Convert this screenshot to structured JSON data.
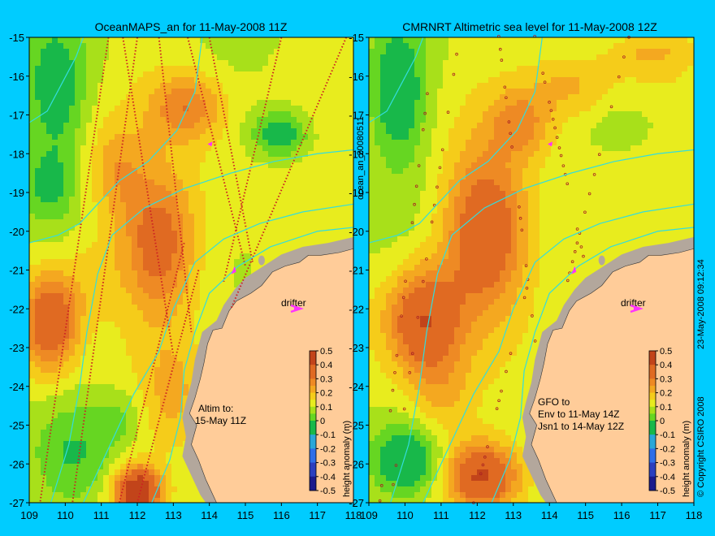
{
  "colors": {
    "background": "#00ccff",
    "land": "#ffcc99",
    "shelf": "#b3a79c",
    "contour": "#33dddd",
    "track_left": "#cc2222",
    "drifter": "#ff33ff"
  },
  "chart_data": [
    {
      "type": "heatmap",
      "title": "OceanMAPS_an for 11-May-2008 11Z",
      "xlim": [
        109,
        118
      ],
      "ylim": [
        -27,
        -15
      ],
      "x_ticks": [
        "109",
        "110",
        "111",
        "112",
        "113",
        "114",
        "115",
        "116",
        "117",
        "118"
      ],
      "y_ticks": [
        "-15",
        "-16",
        "-17",
        "-18",
        "-19",
        "-20",
        "-21",
        "-22",
        "-23",
        "-24",
        "-25",
        "-26",
        "-27"
      ],
      "annotations": {
        "drifter": "drifter",
        "altim_line1": "Altim to:",
        "altim_line2": "15-May 11Z"
      },
      "blobs": [
        {
          "x": 109.6,
          "y": -22.3,
          "v": 0.32,
          "sx": 0.55,
          "sy": 0.9
        },
        {
          "x": 112.0,
          "y": -26.7,
          "v": 0.42,
          "sx": 0.45,
          "sy": 0.45
        },
        {
          "x": 112.6,
          "y": -20.3,
          "v": 0.26,
          "sx": 0.7,
          "sy": 1.2
        },
        {
          "x": 113.4,
          "y": -16.8,
          "v": 0.2,
          "sx": 0.7,
          "sy": 0.6
        },
        {
          "x": 111.4,
          "y": -18.5,
          "v": 0.15,
          "sx": 0.6,
          "sy": 0.9
        },
        {
          "x": 109.7,
          "y": -16.4,
          "v": -0.12,
          "sx": 0.6,
          "sy": 1.2
        },
        {
          "x": 109.5,
          "y": -18.8,
          "v": -0.08,
          "sx": 0.5,
          "sy": 0.6
        },
        {
          "x": 116.0,
          "y": -17.5,
          "v": -0.14,
          "sx": 0.6,
          "sy": 0.45
        },
        {
          "x": 110.3,
          "y": -25.7,
          "v": -0.05,
          "sx": 0.8,
          "sy": 0.9
        },
        {
          "x": 111.5,
          "y": -24.8,
          "v": -0.03,
          "sx": 0.5,
          "sy": 0.5
        },
        {
          "x": 113.0,
          "y": -24.3,
          "v": 0.13,
          "sx": 0.6,
          "sy": 1.0
        },
        {
          "x": 110.8,
          "y": -21.0,
          "v": 0.1,
          "sx": 0.6,
          "sy": 0.8
        },
        {
          "x": 114.8,
          "y": -19.2,
          "v": 0.07,
          "sx": 1.2,
          "sy": 1.3
        }
      ]
    },
    {
      "type": "heatmap",
      "title": "CMRNRT Altimetric sea level  for 11-May-2008 12Z",
      "xlim": [
        109,
        118
      ],
      "ylim": [
        -27,
        -15
      ],
      "x_ticks": [
        "109",
        "110",
        "111",
        "112",
        "113",
        "114",
        "115",
        "116",
        "117",
        "118"
      ],
      "y_ticks": [
        "-15",
        "-16",
        "-17",
        "-18",
        "-19",
        "-20",
        "-21",
        "-22",
        "-23",
        "-24",
        "-25",
        "-26",
        "-27"
      ],
      "annotations": {
        "drifter": "drifter",
        "gfo_line1": "GFO to",
        "gfo_line2": "Env to 11-May 14Z",
        "gfo_line3": "Jsn1 to 14-May 12Z"
      },
      "blobs": [
        {
          "x": 110.5,
          "y": -22.3,
          "v": 0.32,
          "sx": 0.75,
          "sy": 1.0
        },
        {
          "x": 112.2,
          "y": -20.0,
          "v": 0.3,
          "sx": 0.8,
          "sy": 1.4
        },
        {
          "x": 112.1,
          "y": -26.3,
          "v": 0.33,
          "sx": 0.75,
          "sy": 0.6
        },
        {
          "x": 113.2,
          "y": -17.2,
          "v": 0.17,
          "sx": 0.6,
          "sy": 0.6
        },
        {
          "x": 109.8,
          "y": -16.5,
          "v": -0.14,
          "sx": 0.55,
          "sy": 1.2
        },
        {
          "x": 110.1,
          "y": -25.9,
          "v": -0.15,
          "sx": 0.65,
          "sy": 0.55
        },
        {
          "x": 116.2,
          "y": -17.3,
          "v": -0.03,
          "sx": 0.7,
          "sy": 0.45
        },
        {
          "x": 114.6,
          "y": -16.2,
          "v": 0.14,
          "sx": 0.8,
          "sy": 0.6
        },
        {
          "x": 116.8,
          "y": -15.4,
          "v": 0.12,
          "sx": 0.9,
          "sy": 0.4
        },
        {
          "x": 114.5,
          "y": -19.8,
          "v": 0.06,
          "sx": 1.3,
          "sy": 1.3
        },
        {
          "x": 111.0,
          "y": -24.3,
          "v": 0.12,
          "sx": 0.6,
          "sy": 0.8
        }
      ]
    }
  ],
  "colorbar": {
    "label": "height anomaly (m)",
    "ticks": [
      "0.5",
      "0.4",
      "0.3",
      "0.2",
      "0.1",
      "0",
      "-0.1",
      "-0.2",
      "-0.3",
      "-0.4",
      "-0.5"
    ]
  },
  "side_labels": {
    "run_id": "ocean_an_20080511",
    "date": "23-May-2008 09:12:34",
    "copyright": "© Copyright CSIRO 2008"
  }
}
